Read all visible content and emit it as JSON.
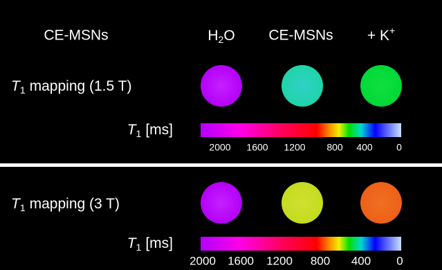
{
  "header": {
    "label": "CE-MSNs",
    "columns": [
      {
        "text": "H",
        "sub": "2",
        "after": "O"
      },
      {
        "text": "CE-MSNs"
      },
      {
        "text": "+ K",
        "sup": "+"
      }
    ]
  },
  "panels": [
    {
      "mapping": {
        "symbol": "T",
        "sub": "1",
        "text": "mapping (1.5 T)"
      },
      "colorbar_label": {
        "symbol": "T",
        "sub": "1",
        "text": "[ms]"
      },
      "colorbar_ticks": [
        2000,
        1600,
        1200,
        800,
        400,
        0
      ]
    },
    {
      "mapping": {
        "symbol": "T",
        "sub": "1",
        "text": "mapping (3 T)"
      },
      "colorbar_label": {
        "symbol": "T",
        "sub": "1",
        "text": "[ms]"
      },
      "colorbar_ticks": [
        2000,
        1600,
        1200,
        800,
        400,
        0
      ]
    }
  ]
}
